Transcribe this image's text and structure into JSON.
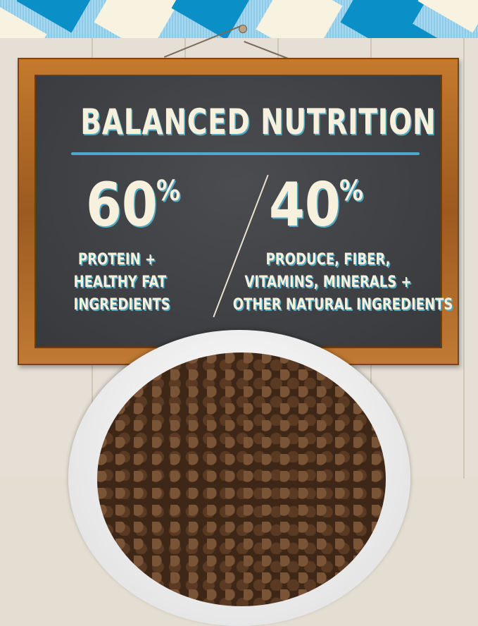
{
  "title": "BALANCED NUTRITION",
  "left": {
    "value": "60",
    "unit": "%",
    "lines": [
      "PROTEIN +",
      "HEALTHY FAT",
      "INGREDIENTS"
    ]
  },
  "right": {
    "value": "40",
    "unit": "%",
    "lines": [
      "PRODUCE, FIBER,",
      "VITAMINS, MINERALS +",
      "OTHER NATURAL INGREDIENTS"
    ]
  },
  "colors": {
    "chalk": "#f6f0dc",
    "accent": "#4cb7d6",
    "board": "#3f4144",
    "frame": "#b06a28",
    "cloth_blue": "#0a8fc6",
    "cloth_cream": "#f7f3e0"
  }
}
